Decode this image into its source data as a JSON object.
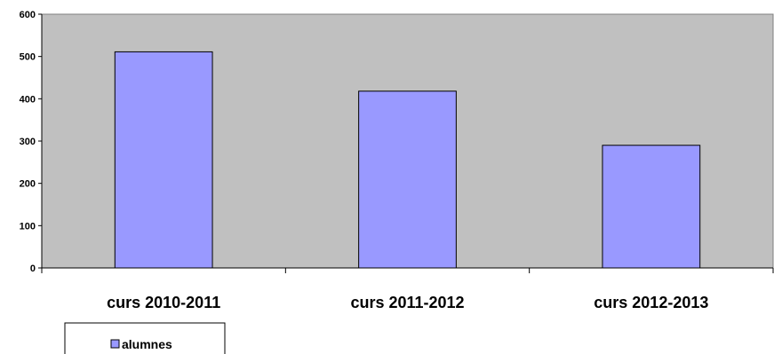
{
  "chart_data": {
    "type": "bar",
    "categories": [
      "curs 2010-2011",
      "curs 2011-2012",
      "curs 2012-2013"
    ],
    "series": [
      {
        "name": "alumnes",
        "values": [
          511,
          418,
          290
        ],
        "color": "#9999ff"
      }
    ],
    "ylim": [
      0,
      600
    ],
    "yticks": [
      0,
      100,
      200,
      300,
      400,
      500,
      600
    ],
    "grid": false,
    "plot_background": "#c0c0c0",
    "legend": {
      "position": "bottom-left",
      "entries": [
        "alumnes"
      ]
    }
  }
}
